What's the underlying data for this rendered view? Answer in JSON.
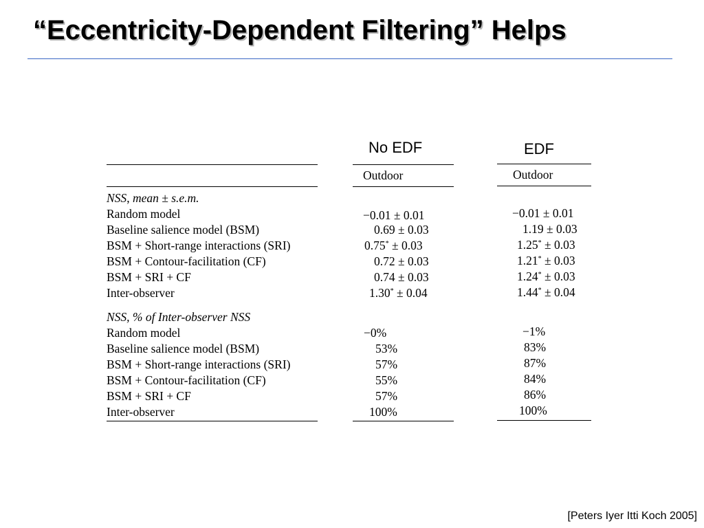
{
  "slide": {
    "title": "“Eccentricity-Dependent Filtering” Helps",
    "citation": "[Peters Iyer Itti Koch 2005]"
  },
  "table": {
    "col_heads": [
      "No EDF",
      "EDF"
    ],
    "sub_head": "Outdoor",
    "section1": {
      "heading_a": "NSS",
      "heading_b": "mean ± s.e.m.",
      "rows": [
        {
          "label": "Random model",
          "no_edf": "−0.01 ± 0.01",
          "no_edf_star": false,
          "edf": "−0.01 ± 0.01",
          "edf_star": false
        },
        {
          "label": "Baseline salience model (BSM)",
          "no_edf": "0.69 ± 0.03",
          "no_edf_star": false,
          "edf": "1.19 ± 0.03",
          "edf_star": false
        },
        {
          "label": "BSM + Short-range interactions (SRI)",
          "no_edf": "0.75",
          "no_edf_star": true,
          "no_edf_rest": "± 0.03",
          "edf": "1.25",
          "edf_star": true,
          "edf_rest": "± 0.03"
        },
        {
          "label": "BSM + Contour-facilitation (CF)",
          "no_edf": "0.72 ± 0.03",
          "no_edf_star": false,
          "edf": "1.21",
          "edf_star": true,
          "edf_rest": "± 0.03"
        },
        {
          "label": "BSM + SRI + CF",
          "no_edf": "0.74 ± 0.03",
          "no_edf_star": false,
          "edf": "1.24",
          "edf_star": true,
          "edf_rest": "± 0.03"
        },
        {
          "label": "Inter-observer",
          "no_edf": "1.30",
          "no_edf_star": true,
          "no_edf_rest": "± 0.04",
          "edf": "1.44",
          "edf_star": true,
          "edf_rest": "± 0.04"
        }
      ]
    },
    "section2": {
      "heading": "NSS, % of Inter-observer NSS",
      "rows": [
        {
          "label": "Random model",
          "no_edf": "−0%",
          "edf": "−1%"
        },
        {
          "label": "Baseline salience model (BSM)",
          "no_edf": "53%",
          "edf": "83%"
        },
        {
          "label": "BSM + Short-range interactions (SRI)",
          "no_edf": "57%",
          "edf": "87%"
        },
        {
          "label": "BSM + Contour-facilitation (CF)",
          "no_edf": "55%",
          "edf": "84%"
        },
        {
          "label": "BSM + SRI + CF",
          "no_edf": "57%",
          "edf": "86%"
        },
        {
          "label": "Inter-observer",
          "no_edf": "100%",
          "edf": "100%"
        }
      ]
    }
  }
}
